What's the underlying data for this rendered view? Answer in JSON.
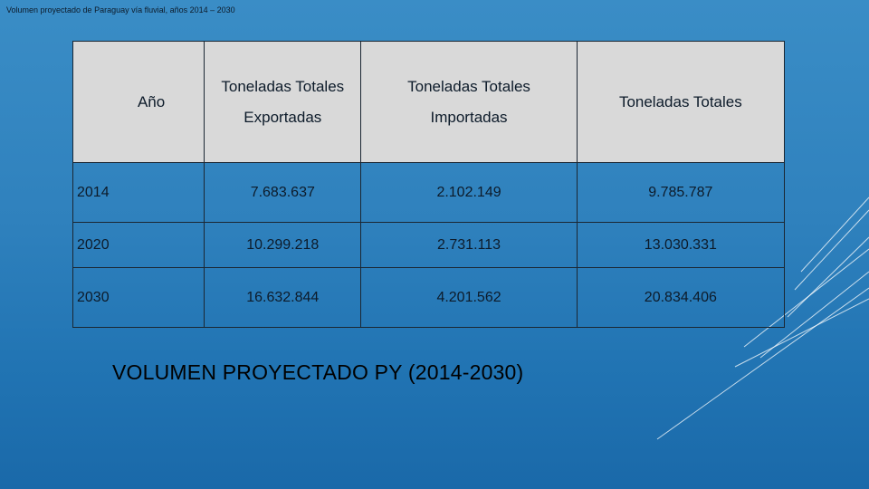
{
  "caption": "Volumen proyectado de Paraguay vía fluvial, años 2014 – 2030",
  "table": {
    "headers": {
      "year": "Año",
      "exported": {
        "line1": "Toneladas Totales",
        "line2": "Exportadas"
      },
      "imported": {
        "line1": "Toneladas Totales",
        "line2": "Importadas"
      },
      "total": "Toneladas Totales"
    },
    "rows": [
      {
        "year": "2014",
        "exported": "7.683.637",
        "imported": "2.102.149",
        "total": "9.785.787"
      },
      {
        "year": "2020",
        "exported": "10.299.218",
        "imported": "2.731.113",
        "total": "13.030.331"
      },
      {
        "year": "2030",
        "exported": "16.632.844",
        "imported": "4.201.562",
        "total": "20.834.406"
      }
    ]
  },
  "slide_title": "VOLUMEN PROYECTADO PY (2014-2030)",
  "colors": {
    "background_top": "#3a8dc6",
    "background_bottom": "#1a69a9",
    "header_fill": "#d9d9d9",
    "border": "#1b2733"
  }
}
